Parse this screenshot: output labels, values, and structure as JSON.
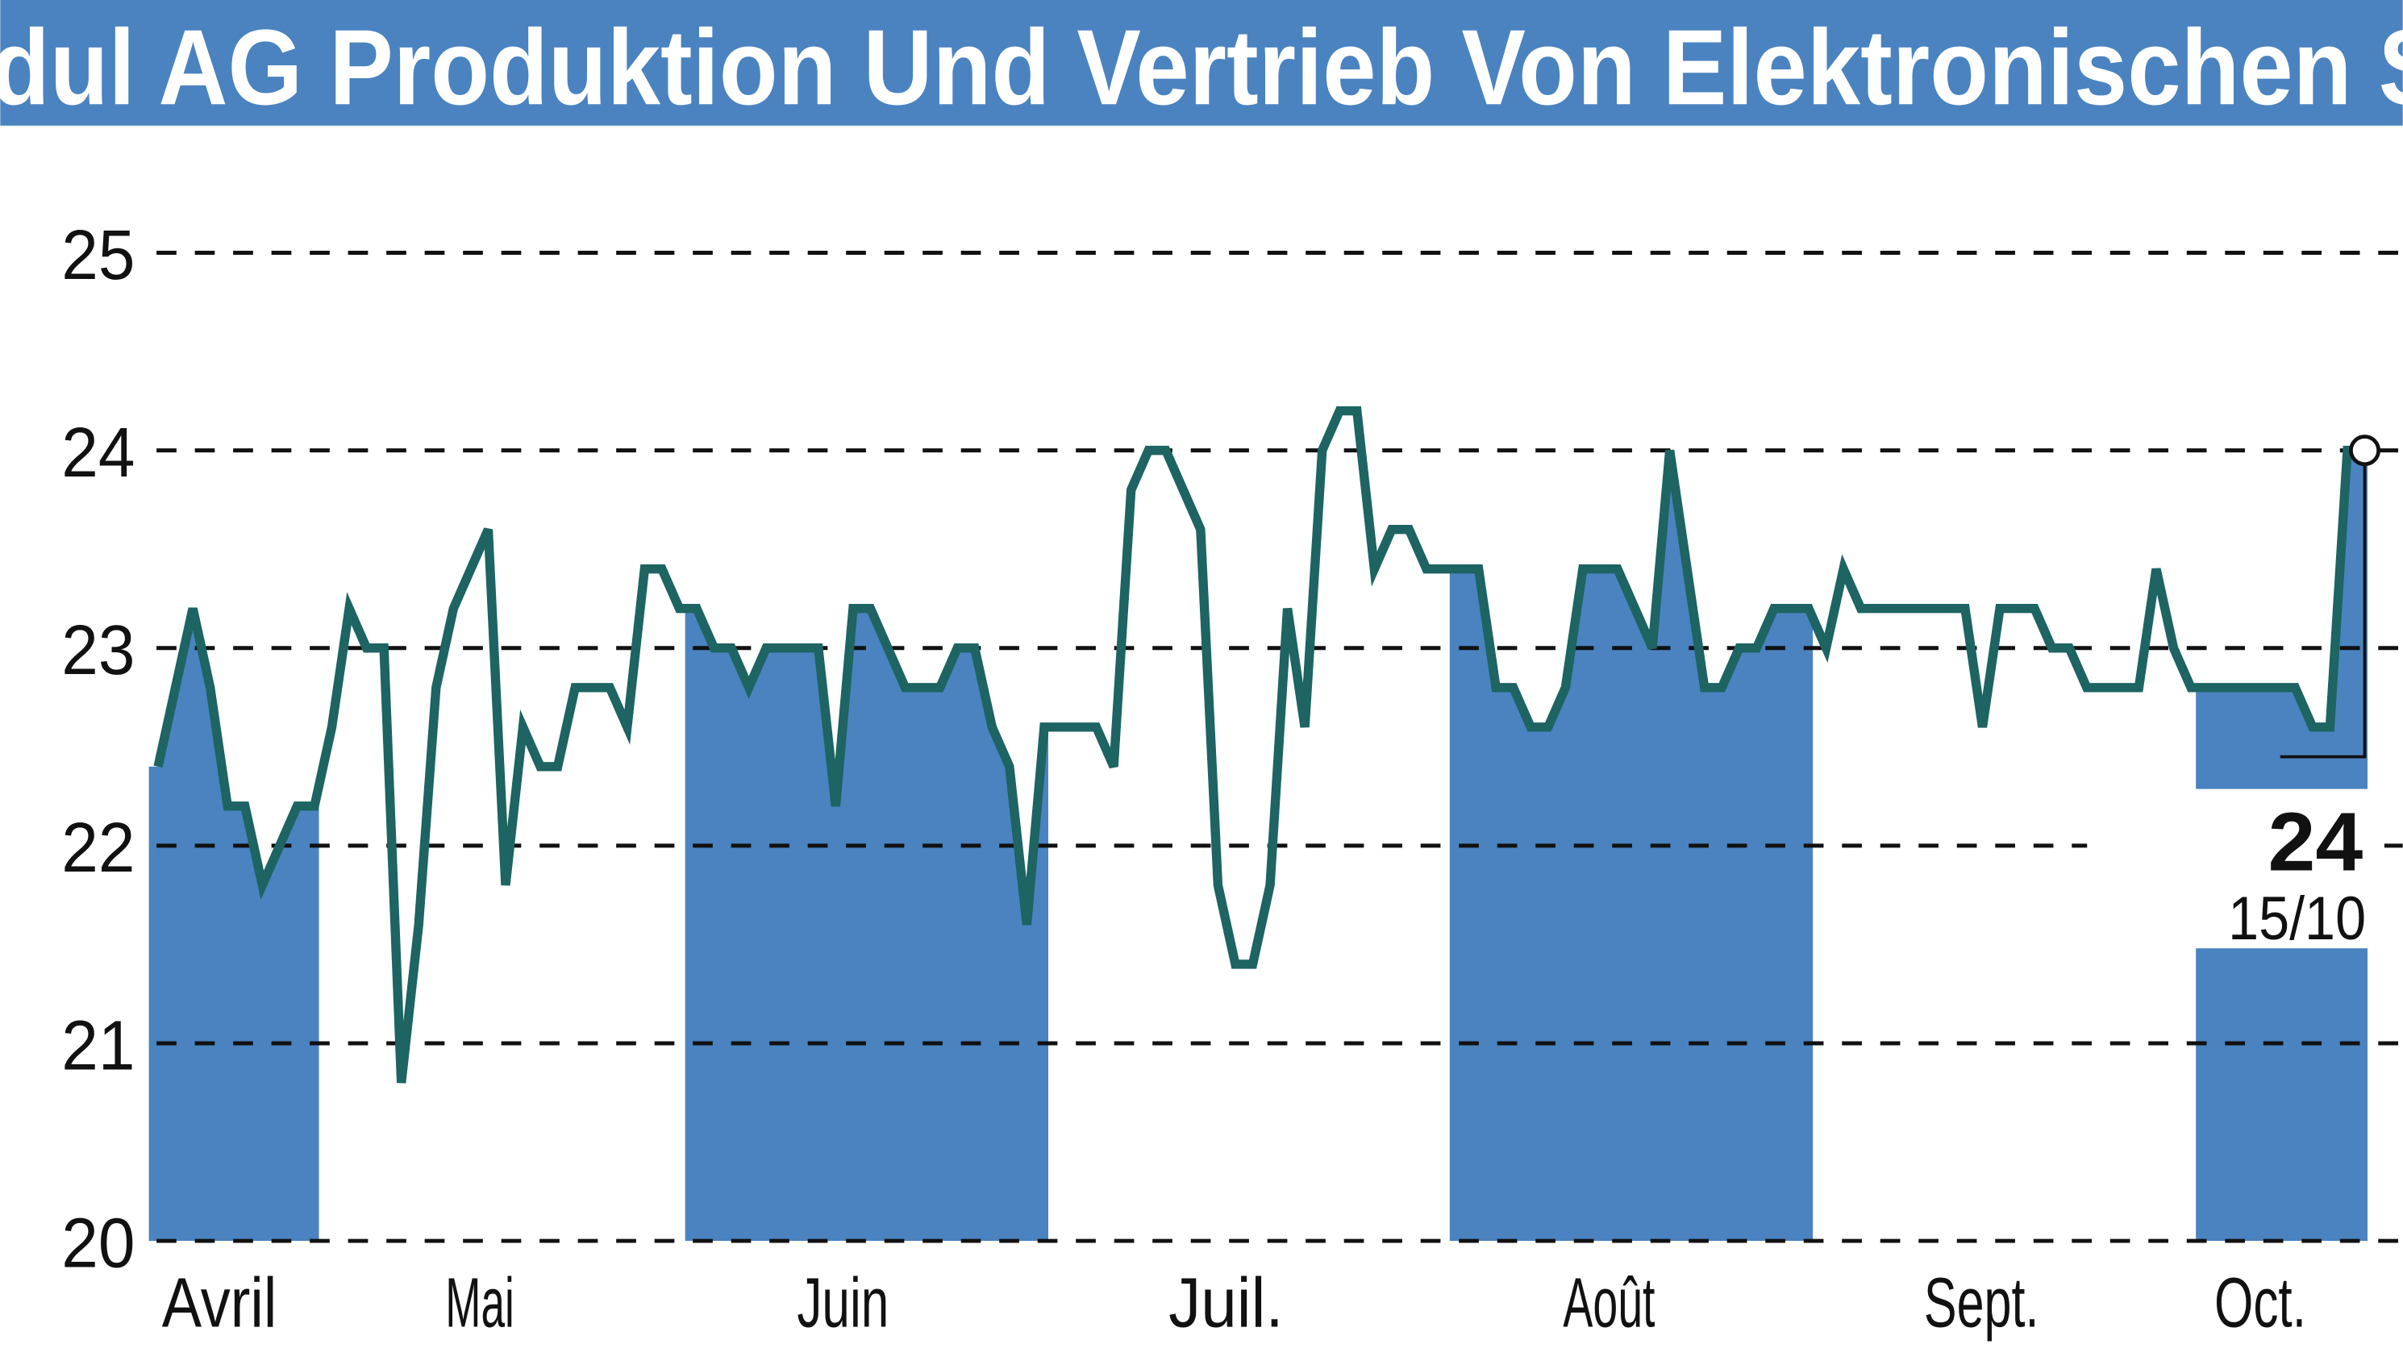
{
  "title": "dul AG Produktion Und Vertrieb Von Elektronischen S",
  "colors": {
    "title_bar": "#4a83c0",
    "band": "#4a83c0",
    "line": "#1d6462",
    "grid": "#111111"
  },
  "chart_data": {
    "type": "line",
    "ylim": [
      20,
      25
    ],
    "yticks": [
      "20",
      "21",
      "22",
      "23",
      "24",
      "25"
    ],
    "grid": true,
    "months": [
      "Avril",
      "Mai",
      "Juin",
      "Juil.",
      "Août",
      "Sept.",
      "Oct."
    ],
    "shaded_months": [
      "Avril",
      "Juin",
      "Août",
      "Oct."
    ],
    "values": [
      22.4,
      22.8,
      23.2,
      22.8,
      22.2,
      22.2,
      21.8,
      22.0,
      22.2,
      22.2,
      22.6,
      23.2,
      23.0,
      23.0,
      20.8,
      21.6,
      22.8,
      23.2,
      23.4,
      23.6,
      21.8,
      22.6,
      22.4,
      22.4,
      22.8,
      22.8,
      22.8,
      22.6,
      23.4,
      23.4,
      23.2,
      23.2,
      23.0,
      23.0,
      22.8,
      23.0,
      23.0,
      23.0,
      23.0,
      22.2,
      23.2,
      23.2,
      23.0,
      22.8,
      22.8,
      22.8,
      23.0,
      23.0,
      22.6,
      22.4,
      21.6,
      22.6,
      22.6,
      22.6,
      22.6,
      22.4,
      23.8,
      24.0,
      24.0,
      23.8,
      23.6,
      21.8,
      21.4,
      21.4,
      21.8,
      23.2,
      22.6,
      24.0,
      24.2,
      24.2,
      23.4,
      23.6,
      23.6,
      23.4,
      23.4,
      23.4,
      23.4,
      22.8,
      22.8,
      22.6,
      22.6,
      22.8,
      23.4,
      23.4,
      23.4,
      23.2,
      23.0,
      24.0,
      23.4,
      22.8,
      22.8,
      23.0,
      23.0,
      23.2,
      23.2,
      23.2,
      23.0,
      23.4,
      23.2,
      23.2,
      23.2,
      23.2,
      23.2,
      23.2,
      23.2,
      22.6,
      23.2,
      23.2,
      23.2,
      23.0,
      23.0,
      22.8,
      22.8,
      22.8,
      22.8,
      23.4,
      23.0,
      22.8,
      22.8,
      22.8,
      22.8,
      22.8,
      22.8,
      22.8,
      22.6,
      22.6,
      24.0,
      24.0
    ],
    "last_value": "24",
    "last_date": "15/10"
  }
}
